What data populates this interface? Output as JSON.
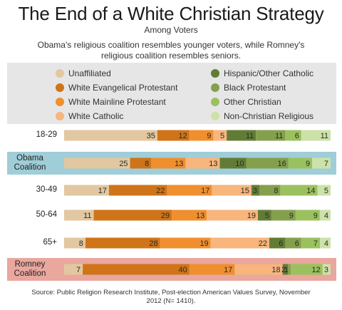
{
  "title": "The End of a White Christian Strategy",
  "subtitle": "Among Voters",
  "description": "Obama's religious coalition resembles younger voters, while Romney's religious coalition resembles seniors.",
  "source": "Source: Public Religion Research Institute, Post-election American Values Survey, November 2012 (N= 1410).",
  "chart_data": {
    "type": "bar",
    "stacked": true,
    "orientation": "horizontal",
    "xlim": [
      0,
      100
    ],
    "grid": false,
    "legend_position": "top",
    "categories": [
      "18-29",
      "Obama Coalition",
      "30-49",
      "50-64",
      "65+",
      "Romney Coalition"
    ],
    "series": [
      {
        "name": "Unaffiliated",
        "color": "#e2c7a0",
        "values": [
          35,
          25,
          17,
          11,
          8,
          7
        ]
      },
      {
        "name": "White Evangelical Protestant",
        "color": "#cf7418",
        "values": [
          12,
          8,
          22,
          29,
          28,
          40
        ]
      },
      {
        "name": "White Mainline Protestant",
        "color": "#f08f2e",
        "values": [
          9,
          13,
          17,
          13,
          19,
          17
        ]
      },
      {
        "name": "White Catholic",
        "color": "#f8b57c",
        "values": [
          5,
          13,
          15,
          19,
          22,
          18
        ]
      },
      {
        "name": "Hispanic/Other Catholic",
        "color": "#627c36",
        "values": [
          11,
          10,
          3,
          5,
          6,
          2
        ]
      },
      {
        "name": "Black Protestant",
        "color": "#84a04c",
        "values": [
          11,
          16,
          8,
          9,
          6,
          1
        ]
      },
      {
        "name": "Other Christian",
        "color": "#9bc15e",
        "values": [
          6,
          9,
          14,
          9,
          7,
          12
        ]
      },
      {
        "name": "Non-Christian Religious",
        "color": "#cde2a8",
        "values": [
          11,
          7,
          5,
          4,
          4,
          3
        ]
      }
    ],
    "highlight": {
      "Obama Coalition": "#9fcdd8",
      "Romney Coalition": "#e9a79e"
    }
  },
  "row_label_lines": [
    [
      "18-29"
    ],
    [
      "Obama",
      "Coalition"
    ],
    [
      "30-49"
    ],
    [
      "50-64"
    ],
    [
      "65+"
    ],
    [
      "Romney",
      "Coalition"
    ]
  ]
}
